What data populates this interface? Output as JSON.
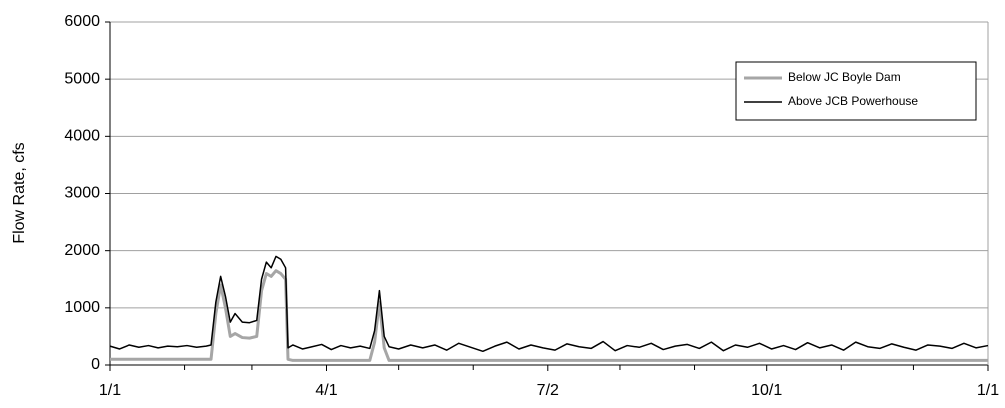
{
  "chart_data": {
    "type": "line",
    "y_label": "Flow Rate, cfs",
    "x": [
      0,
      4,
      8,
      12,
      16,
      20,
      24,
      28,
      32,
      36,
      40,
      42,
      44,
      46,
      48,
      50,
      52,
      55,
      58,
      61,
      63,
      65,
      67,
      69,
      71,
      73,
      74,
      76,
      80,
      84,
      88,
      92,
      96,
      100,
      104,
      108,
      110,
      112,
      114,
      116,
      120,
      125,
      130,
      135,
      140,
      145,
      150,
      155,
      160,
      165,
      170,
      175,
      180,
      185,
      190,
      195,
      200,
      205,
      210,
      215,
      220,
      225,
      230,
      235,
      240,
      245,
      250,
      255,
      260,
      265,
      270,
      275,
      280,
      285,
      290,
      295,
      300,
      305,
      310,
      315,
      320,
      325,
      330,
      335,
      340,
      345,
      350,
      355,
      360,
      365
    ],
    "series": [
      {
        "name": "Below JC Boyle Dam",
        "color": "#a6a6a6",
        "width": 3,
        "values": [
          100,
          100,
          100,
          100,
          100,
          100,
          100,
          100,
          100,
          100,
          100,
          100,
          900,
          1400,
          1000,
          500,
          550,
          480,
          470,
          500,
          1300,
          1600,
          1550,
          1650,
          1600,
          1500,
          100,
          80,
          80,
          80,
          80,
          80,
          80,
          80,
          80,
          80,
          400,
          1100,
          300,
          80,
          80,
          80,
          80,
          80,
          80,
          80,
          80,
          80,
          80,
          80,
          80,
          80,
          80,
          80,
          80,
          80,
          80,
          80,
          80,
          80,
          80,
          80,
          80,
          80,
          80,
          80,
          80,
          80,
          80,
          80,
          80,
          80,
          80,
          80,
          80,
          80,
          80,
          80,
          80,
          80,
          80,
          80,
          80,
          80,
          80,
          80,
          80,
          80,
          80,
          80
        ]
      },
      {
        "name": "Above JCB Powerhouse",
        "color": "#000000",
        "width": 1.5,
        "values": [
          330,
          280,
          350,
          310,
          340,
          300,
          330,
          320,
          340,
          310,
          330,
          350,
          1100,
          1550,
          1200,
          750,
          900,
          750,
          740,
          780,
          1500,
          1800,
          1700,
          1900,
          1850,
          1700,
          300,
          350,
          280,
          320,
          360,
          270,
          340,
          300,
          330,
          290,
          600,
          1300,
          500,
          320,
          280,
          350,
          300,
          350,
          260,
          380,
          310,
          240,
          330,
          400,
          280,
          350,
          300,
          260,
          370,
          320,
          290,
          410,
          250,
          340,
          310,
          380,
          270,
          330,
          360,
          290,
          400,
          250,
          350,
          310,
          380,
          280,
          340,
          270,
          390,
          300,
          350,
          260,
          400,
          320,
          290,
          370,
          310,
          260,
          350,
          330,
          290,
          380,
          300,
          340
        ]
      }
    ],
    "xlim": [
      0,
      365
    ],
    "xticks": [
      {
        "value": 0,
        "label": "1/1"
      },
      {
        "value": 90,
        "label": "4/1"
      },
      {
        "value": 182,
        "label": "7/2"
      },
      {
        "value": 273,
        "label": "10/1"
      },
      {
        "value": 365,
        "label": "1/1"
      }
    ],
    "xminorticks": [
      31,
      59,
      120,
      151,
      212,
      243,
      304,
      334
    ],
    "ylim": [
      0,
      6000
    ],
    "yticks": [
      0,
      1000,
      2000,
      3000,
      4000,
      5000,
      6000
    ],
    "grid": true,
    "legend": "upper-right"
  }
}
